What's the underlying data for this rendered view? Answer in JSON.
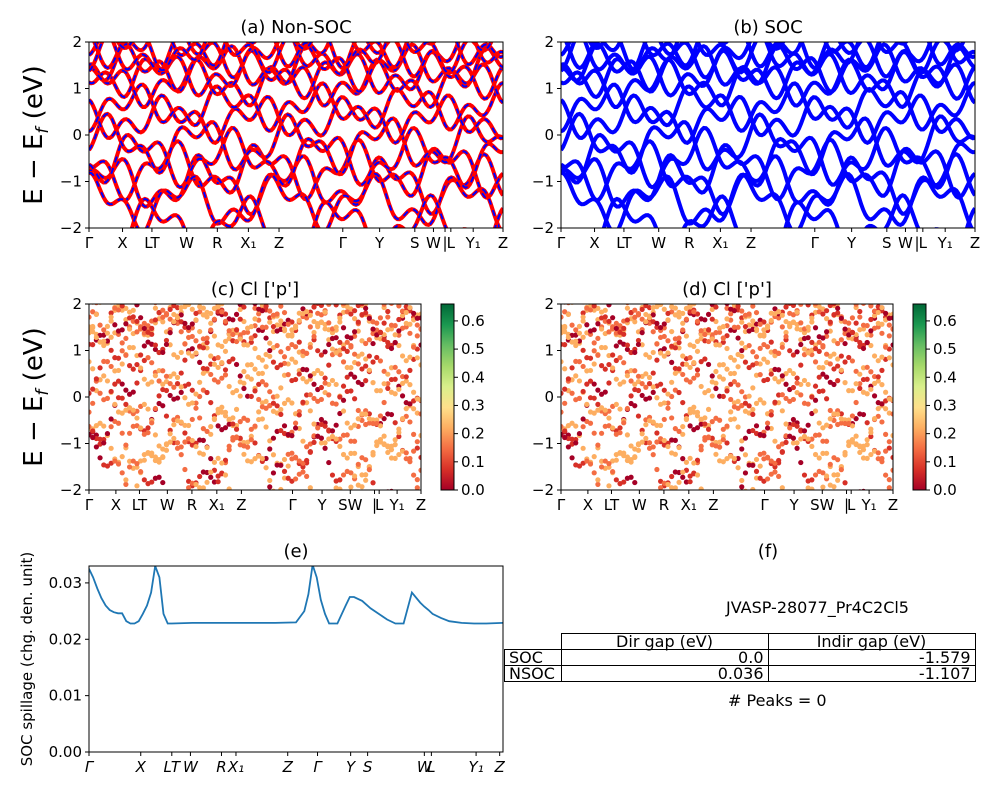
{
  "colors": {
    "nonsoc_line": "#ff0000",
    "nonsoc_dash": "#0000ff",
    "soc_line": "#0000ff",
    "spillage_line": "#1f77b4",
    "colormap": [
      "#a50026",
      "#d73027",
      "#f46d43",
      "#fdae61",
      "#fee08b",
      "#d9ef8b",
      "#a6d96a",
      "#66bd63",
      "#1a9850",
      "#006837"
    ]
  },
  "panels": {
    "a": {
      "title": "(a) Non-SOC"
    },
    "b": {
      "title": "(b) SOC"
    },
    "c": {
      "title": "(c)  Cl ['p']"
    },
    "d": {
      "title": "(d) Cl ['p']"
    },
    "e": {
      "title": "(e)"
    },
    "f": {
      "title": "(f)"
    }
  },
  "ylabel": "E − E_f (eV)",
  "spillage_ylabel": "SOC spillage (chg. den. unit)",
  "table": {
    "caption": "JVASP-28077_Pr4C2Cl5",
    "headers": [
      "",
      "Dir gap (eV)",
      "Indir gap (eV)"
    ],
    "rows": [
      {
        "label": "SOC",
        "dir": "0.0",
        "indir": "-1.579"
      },
      {
        "label": "NSOC",
        "dir": "0.036",
        "indir": "-1.107"
      }
    ],
    "peaks": "# Peaks = 0"
  },
  "chart_data": [
    {
      "panel": "a",
      "type": "line",
      "title": "(a) Non-SOC",
      "ylabel": "E − E_f (eV)",
      "ylim": [
        -2,
        2
      ],
      "yticks": [
        "−2",
        "−1",
        "0",
        "1",
        "2"
      ],
      "xticks": [
        "Γ",
        "X",
        "LT",
        "W",
        "R",
        "X₁",
        "Z",
        "Γ",
        "Y",
        "S",
        "W",
        "|",
        "L",
        "Y₁",
        "Z"
      ]
    },
    {
      "panel": "b",
      "type": "line",
      "title": "(b) SOC",
      "ylim": [
        -2,
        2
      ],
      "yticks": [
        "−2",
        "−1",
        "0",
        "1",
        "2"
      ],
      "xticks": [
        "Γ",
        "X",
        "LT",
        "W",
        "R",
        "X₁",
        "Z",
        "Γ",
        "Y",
        "S",
        "W",
        "|",
        "L",
        "Y₁",
        "Z"
      ]
    },
    {
      "panel": "c",
      "type": "scatter",
      "title": "(c)  Cl ['p']",
      "ylabel": "E − E_f (eV)",
      "ylim": [
        -2,
        2
      ],
      "yticks": [
        "−2",
        "−1",
        "0",
        "1",
        "2"
      ],
      "xticks": [
        "Γ",
        "X",
        "LT",
        "W",
        "R",
        "X₁",
        "Z",
        "Γ",
        "Y",
        "SW",
        "|",
        "L",
        "Y₁",
        "Z"
      ],
      "colorbar": {
        "ticks": [
          "0.0",
          "0.1",
          "0.2",
          "0.3",
          "0.4",
          "0.5",
          "0.6"
        ],
        "range": [
          0,
          0.66
        ]
      }
    },
    {
      "panel": "d",
      "type": "scatter",
      "title": "(d) Cl ['p']",
      "ylim": [
        -2,
        2
      ],
      "yticks": [
        "−2",
        "−1",
        "0",
        "1",
        "2"
      ],
      "xticks": [
        "Γ",
        "X",
        "LT",
        "W",
        "R",
        "X₁",
        "Z",
        "Γ",
        "Y",
        "SW",
        "|",
        "L",
        "Y₁",
        "Z"
      ],
      "colorbar": {
        "ticks": [
          "0.0",
          "0.1",
          "0.2",
          "0.3",
          "0.4",
          "0.5",
          "0.6"
        ],
        "range": [
          0,
          0.66
        ]
      }
    },
    {
      "panel": "e",
      "type": "line",
      "title": "(e)",
      "ylabel": "SOC spillage (chg. den. unit)",
      "ylim": [
        0,
        0.033
      ],
      "yticks": [
        "0.00",
        "0.01",
        "0.02",
        "0.03"
      ],
      "xticks": [
        "Γ",
        "X",
        "LT",
        "W",
        "R",
        "X₁",
        "Z",
        "Γ",
        "Y",
        "S",
        "W",
        "L",
        "Y₁",
        "Z"
      ],
      "x": [
        0,
        0.01,
        0.02,
        0.03,
        0.04,
        0.05,
        0.06,
        0.07,
        0.08,
        0.09,
        0.1,
        0.11,
        0.12,
        0.13,
        0.14,
        0.15,
        0.16,
        0.17,
        0.18,
        0.19,
        0.2,
        0.25,
        0.3,
        0.35,
        0.4,
        0.45,
        0.5,
        0.52,
        0.53,
        0.54,
        0.55,
        0.56,
        0.57,
        0.58,
        0.6,
        0.62,
        0.63,
        0.64,
        0.66,
        0.68,
        0.7,
        0.72,
        0.74,
        0.76,
        0.78,
        0.8,
        0.81,
        0.82,
        0.83,
        0.85,
        0.87,
        0.9,
        0.93,
        0.96,
        1.0
      ],
      "y": [
        0.0325,
        0.031,
        0.029,
        0.0273,
        0.026,
        0.0252,
        0.0248,
        0.0246,
        0.0246,
        0.0232,
        0.0228,
        0.0228,
        0.0232,
        0.0245,
        0.026,
        0.0283,
        0.033,
        0.031,
        0.0245,
        0.0228,
        0.0228,
        0.0229,
        0.0229,
        0.0229,
        0.0229,
        0.0229,
        0.023,
        0.025,
        0.028,
        0.0332,
        0.031,
        0.027,
        0.0245,
        0.0228,
        0.0228,
        0.026,
        0.0275,
        0.0275,
        0.0268,
        0.0255,
        0.0245,
        0.0235,
        0.0228,
        0.0228,
        0.0283,
        0.0265,
        0.0258,
        0.0252,
        0.0245,
        0.0238,
        0.0232,
        0.0229,
        0.0228,
        0.0228,
        0.0229
      ]
    }
  ]
}
